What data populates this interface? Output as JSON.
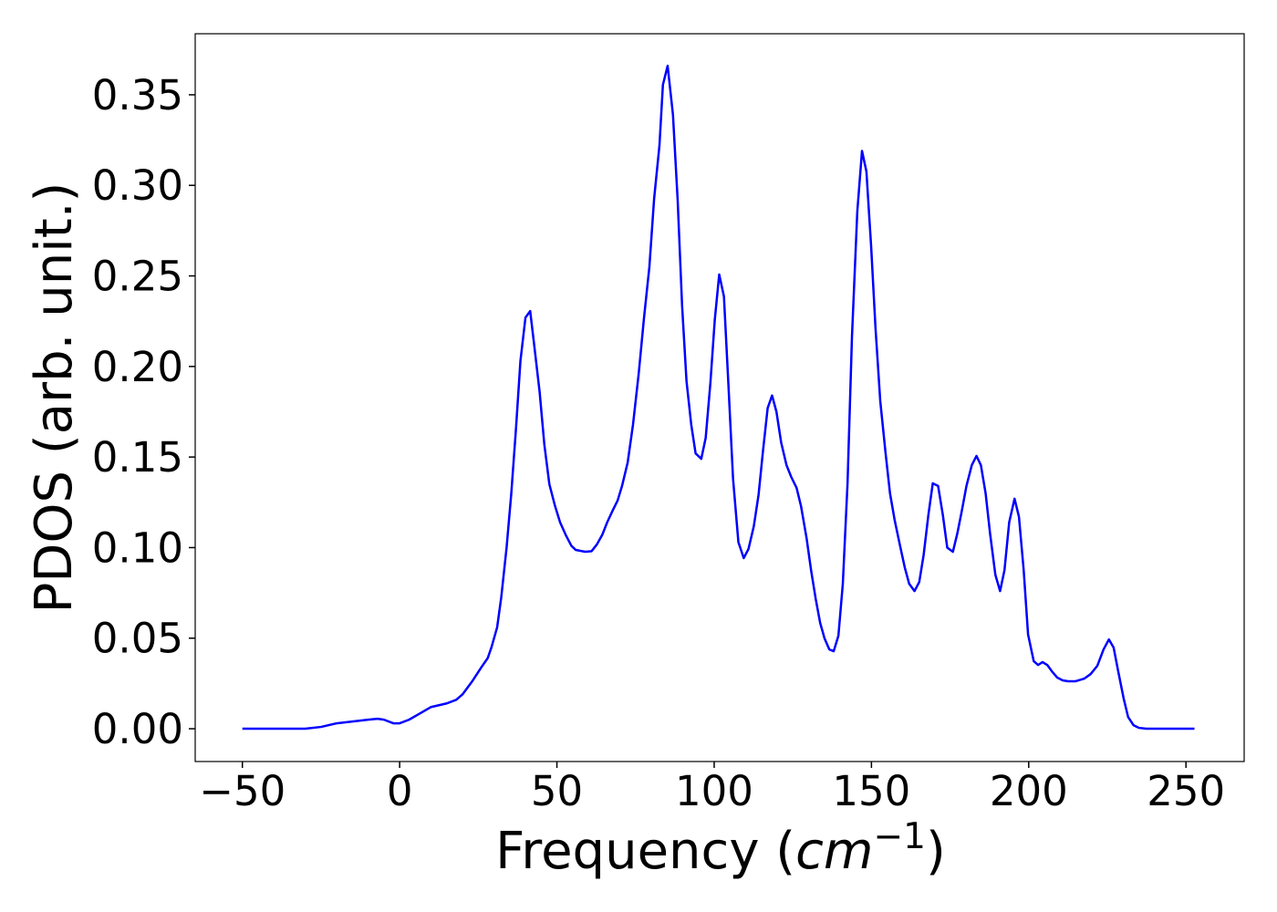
{
  "chart_data": {
    "type": "line",
    "x_label_parts": [
      "Frequency (",
      "cm",
      "−1",
      ")"
    ],
    "y_label": "PDOS (arb. unit.)",
    "xlim": [
      -65.0,
      268.5
    ],
    "ylim": [
      -0.0181,
      0.3837
    ],
    "xticks": [
      {
        "value": -50,
        "label": "−50"
      },
      0,
      50,
      100,
      150,
      200,
      250
    ],
    "yticks": [
      {
        "value": 0,
        "label": "0.00"
      },
      {
        "value": 0.05,
        "label": "0.05"
      },
      {
        "value": 0.1,
        "label": "0.10"
      },
      {
        "value": 0.15,
        "label": "0.15"
      },
      {
        "value": 0.2,
        "label": "0.20"
      },
      {
        "value": 0.25,
        "label": "0.25"
      },
      {
        "value": 0.3,
        "label": "0.30"
      },
      {
        "value": 0.35,
        "label": "0.35"
      }
    ],
    "grid": false,
    "series": [
      {
        "color": "#0000ff",
        "x": [
          -50,
          -30,
          -25,
          -20,
          -15,
          -10,
          -7,
          -5,
          -2,
          0,
          3,
          6,
          10,
          15,
          18,
          20,
          23,
          26,
          28,
          29.2,
          31,
          32.3,
          34,
          35.5,
          37,
          38.4,
          40,
          41.5,
          42.7,
          44.5,
          46,
          47.6,
          49.4,
          51,
          52.8,
          54.6,
          56,
          59,
          61,
          62.7,
          64.4,
          66,
          67.6,
          69.3,
          70.7,
          72.5,
          74.2,
          76,
          77.7,
          79.4,
          80.9,
          82.6,
          83.7,
          85.2,
          86.9,
          88.4,
          89.8,
          91.2,
          92.7,
          94.1,
          95.9,
          97.3,
          98.8,
          100.2,
          101.6,
          103.1,
          104.5,
          106,
          107.7,
          109.4,
          110.9,
          112.6,
          114.1,
          115.5,
          117,
          118.4,
          119.8,
          121.3,
          123,
          124.5,
          126.2,
          127.6,
          129.4,
          130.8,
          132.3,
          133.7,
          135.1,
          136.6,
          138,
          139.5,
          140.9,
          142.4,
          143.8,
          145.5,
          147,
          148.4,
          149.9,
          151.3,
          152.8,
          154.5,
          155.9,
          157.4,
          159.1,
          160.6,
          162,
          163.7,
          165.2,
          166.6,
          168.1,
          169.5,
          171.2,
          172.7,
          174.1,
          175.9,
          177.3,
          178.7,
          180.2,
          181.9,
          183.4,
          184.8,
          186.3,
          187.7,
          189.4,
          190.9,
          192.3,
          193.8,
          195.5,
          196.9,
          198.4,
          199.8,
          201.6,
          203,
          204.4,
          205.9,
          207.6,
          209.1,
          210.8,
          212.5,
          214.8,
          217.7,
          219.7,
          221.8,
          223.8,
          225.5,
          227,
          228.4,
          230.2,
          231.6,
          233.3,
          235,
          237.4,
          252.7
        ],
        "values": [
          0,
          0,
          0.001,
          0.003,
          0.004,
          0.005,
          0.0055,
          0.005,
          0.003,
          0.003,
          0.005,
          0.008,
          0.012,
          0.014,
          0.016,
          0.019,
          0.026,
          0.034,
          0.039,
          0.045,
          0.056,
          0.0725,
          0.1,
          0.13,
          0.166,
          0.203,
          0.227,
          0.2306,
          0.213,
          0.186,
          0.157,
          0.135,
          0.123,
          0.114,
          0.107,
          0.101,
          0.0987,
          0.0977,
          0.098,
          0.1017,
          0.107,
          0.114,
          0.12,
          0.126,
          0.134,
          0.147,
          0.168,
          0.196,
          0.227,
          0.255,
          0.2925,
          0.322,
          0.3555,
          0.366,
          0.339,
          0.2915,
          0.2336,
          0.192,
          0.168,
          0.152,
          0.149,
          0.1606,
          0.191,
          0.226,
          0.2508,
          0.2387,
          0.191,
          0.138,
          0.103,
          0.0942,
          0.0992,
          0.1118,
          0.129,
          0.153,
          0.177,
          0.184,
          0.175,
          0.158,
          0.1455,
          0.139,
          0.133,
          0.123,
          0.105,
          0.0876,
          0.0715,
          0.0584,
          0.0498,
          0.0438,
          0.0428,
          0.0514,
          0.08,
          0.1355,
          0.216,
          0.2855,
          0.319,
          0.3077,
          0.2664,
          0.221,
          0.181,
          0.152,
          0.13,
          0.115,
          0.101,
          0.089,
          0.08,
          0.076,
          0.081,
          0.096,
          0.118,
          0.1355,
          0.134,
          0.118,
          0.1,
          0.0977,
          0.1078,
          0.12,
          0.134,
          0.1455,
          0.1506,
          0.1455,
          0.13,
          0.108,
          0.085,
          0.076,
          0.0876,
          0.114,
          0.127,
          0.117,
          0.0876,
          0.052,
          0.0373,
          0.0352,
          0.0368,
          0.0352,
          0.0312,
          0.0282,
          0.0267,
          0.0262,
          0.0262,
          0.0277,
          0.0302,
          0.0347,
          0.0438,
          0.0493,
          0.0448,
          0.0322,
          0.0166,
          0.0065,
          0.002,
          0.0005,
          0,
          0
        ]
      }
    ]
  }
}
